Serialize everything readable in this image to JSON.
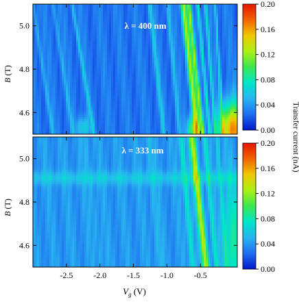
{
  "chart_data": [
    {
      "type": "heatmap",
      "annotation": "λ = 400 nm",
      "xlabel": "V",
      "xlabel_sub": "g",
      "xlabel_unit": " (V)",
      "ylabel": "B",
      "ylabel_unit": " (T)",
      "xlim": [
        -3.0,
        0.05
      ],
      "ylim": [
        4.5,
        5.1
      ],
      "xticks": [
        -2.5,
        -2.0,
        -1.5,
        -1.0,
        -0.5
      ],
      "xtick_labels": [
        "-2.5",
        "-2.0",
        "-1.5",
        "-1.0",
        "-0.5"
      ],
      "yticks": [
        4.6,
        4.8,
        5.0
      ],
      "ytick_labels": [
        "4.6",
        "4.8",
        "5.0"
      ],
      "colorbar": {
        "label": "Transfer current (nA)",
        "range": [
          0.0,
          0.2
        ],
        "ticks": [
          "0.00",
          "0.04",
          "0.08",
          "0.12",
          "0.16",
          "0.20"
        ],
        "colormap": [
          "#0018c8",
          "#1e6ef0",
          "#28b4f0",
          "#00e6c8",
          "#3ce650",
          "#aaf014",
          "#f0c800",
          "#f06400",
          "#e61400"
        ]
      },
      "background_level": 0.028,
      "features": [
        {
          "x": -0.65,
          "slope": -0.35,
          "amp": 0.1,
          "width": 0.045
        },
        {
          "x": -0.57,
          "slope": -0.35,
          "amp": 0.08,
          "width": 0.03
        },
        {
          "x": -0.45,
          "slope": -0.3,
          "amp": 0.05,
          "width": 0.025
        },
        {
          "x": -0.35,
          "slope": -0.25,
          "amp": 0.04,
          "width": 0.02
        },
        {
          "x": -0.22,
          "slope": -0.2,
          "amp": 0.04,
          "width": 0.02
        },
        {
          "x": -2.85,
          "slope": -0.5,
          "amp": 0.022,
          "width": 0.03
        },
        {
          "x": -2.55,
          "slope": -0.5,
          "amp": 0.02,
          "width": 0.03
        },
        {
          "x": -2.25,
          "slope": -0.55,
          "amp": 0.03,
          "width": 0.025
        },
        {
          "x": -1.15,
          "slope": -0.35,
          "amp": 0.03,
          "width": 0.03
        },
        {
          "x": -0.9,
          "slope": -0.3,
          "amp": 0.025,
          "width": 0.03
        }
      ],
      "hot_spots": [
        {
          "x": -0.02,
          "y": 4.52,
          "amp": 0.14,
          "rx": 0.2,
          "ry": 0.12
        },
        {
          "x": -0.62,
          "y": 4.52,
          "amp": 0.08,
          "rx": 0.08,
          "ry": 0.06
        },
        {
          "x": -2.25,
          "y": 4.53,
          "amp": 0.04,
          "rx": 0.1,
          "ry": 0.05
        }
      ]
    },
    {
      "type": "heatmap",
      "annotation": "λ = 333 nm",
      "xlabel": "V",
      "xlabel_sub": "g",
      "xlabel_unit": " (V)",
      "ylabel": "B",
      "ylabel_unit": " (T)",
      "xlim": [
        -3.0,
        0.05
      ],
      "ylim": [
        4.5,
        5.1
      ],
      "xticks": [
        -2.5,
        -2.0,
        -1.5,
        -1.0,
        -0.5
      ],
      "xtick_labels": [
        "-2.5",
        "-2.0",
        "-1.5",
        "-1.0",
        "-0.5"
      ],
      "yticks": [
        4.6,
        4.8,
        5.0
      ],
      "ytick_labels": [
        "4.6",
        "4.8",
        "5.0"
      ],
      "colorbar": {
        "label": "Transfer current (nA)",
        "range": [
          0.0,
          0.2
        ],
        "ticks": [
          "0.00",
          "0.04",
          "0.08",
          "0.12",
          "0.16",
          "0.20"
        ],
        "colormap": [
          "#0018c8",
          "#1e6ef0",
          "#28b4f0",
          "#00e6c8",
          "#3ce650",
          "#aaf014",
          "#f0c800",
          "#f06400",
          "#e61400"
        ]
      },
      "background_level": 0.04,
      "features": [
        {
          "x": -0.52,
          "slope": -0.35,
          "amp": 0.09,
          "width": 0.05
        },
        {
          "x": -0.7,
          "slope": -0.3,
          "amp": 0.04,
          "width": 0.04
        },
        {
          "x": -0.35,
          "slope": -0.3,
          "amp": 0.035,
          "width": 0.03
        },
        {
          "x": -0.18,
          "slope": -0.25,
          "amp": 0.03,
          "width": 0.03
        },
        {
          "x": -1.2,
          "slope": -0.3,
          "amp": 0.012,
          "width": 0.05
        },
        {
          "x": -2.1,
          "slope": -0.4,
          "amp": 0.01,
          "width": 0.05
        }
      ],
      "bands": [
        {
          "y": 4.91,
          "amp": 0.02,
          "width": 0.03
        }
      ],
      "hot_spots": [
        {
          "x": -0.02,
          "y": 4.6,
          "amp": 0.04,
          "rx": 0.15,
          "ry": 0.3
        }
      ]
    }
  ]
}
